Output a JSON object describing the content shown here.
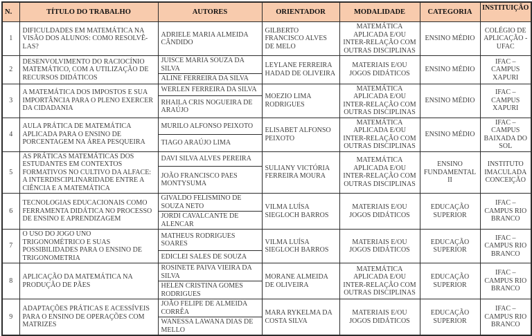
{
  "colors": {
    "header_bg": "#F8CBAD",
    "border": "#2b2b2b",
    "text": "#3d3d3d",
    "header_text": "#111111"
  },
  "table": {
    "columns": [
      "N.",
      "TÍTULO DO TRABALHO",
      "AUTORES",
      "ORIENTADOR",
      "MODALIDADE",
      "CATEGORIA",
      "INSTITUIÇÃO"
    ],
    "rows": [
      {
        "n": "1",
        "titulo": "DIFICULDADES EM MATEMÁTICA NA VISÃO DOS ALUNOS: COMO RESOLVÊ-LAS?",
        "autores": [
          "ADRIELE MARIA ALMEIDA CÂNDIDO"
        ],
        "orientador": "GILBERTO FRANCISCO ALVES DE MELO",
        "modalidade": "MATEMÁTICA APLICADA E/OU INTER-RELAÇÃO COM OUTRAS DISCIPLINAS",
        "categoria": "ENSINO MÉDIO",
        "instituicao": "COLÉGIO DE APLICAÇÃO - UFAC"
      },
      {
        "n": "2",
        "titulo": "DESENVOLVIMENTO DO RACIOCÍNIO MATEMÁTICO, COM A UTILIZAÇÃO DE RECURSOS DIDÁTICOS",
        "autores": [
          "JUISCE MARIA SOUZA DA SILVA",
          "ALINE FERREIRA DA SILVA"
        ],
        "orientador": "LEYLANE FERREIRA HADAD DE OLIVEIRA",
        "modalidade": "MATERIAIS E/OU JOGOS DIDÁTICOS",
        "categoria": "ENSINO MÉDIO",
        "instituicao": "IFAC – CAMPUS XAPURI"
      },
      {
        "n": "3",
        "titulo": "A MATEMÁTICA DOS IMPOSTOS E SUA IMPORTÂNCIA PARA O PLENO EXERCER DA CIDADANIA",
        "autores": [
          "WERLEN FERREIRA DA SILVA",
          "RHAILA CRIS NOGUEIRA DE ARAÚJO"
        ],
        "orientador": "MOEZIO LIMA RODRIGUES",
        "modalidade": "MATEMÁTICA APLICADA E/OU INTER-RELAÇÃO COM OUTRAS DISCIPLINAS",
        "categoria": "ENSINO MÉDIO",
        "instituicao": "IFAC – CAMPUS XAPURI"
      },
      {
        "n": "4",
        "titulo": "AULA PRÁTICA DE MATEMÁTICA APLICADA PARA O ENSINO DE PORCENTAGEM NA ÁREA PESQUEIRA",
        "autores": [
          "MURILO ALFONSO PEIXOTO",
          "TIAGO ARAÚJO LIMA"
        ],
        "orientador": "ELISABET ALFONSO PEIXOTO",
        "modalidade": "MATEMÁTICA APLICADA E/OU INTER-RELAÇÃO COM OUTRAS DISCIPLINAS",
        "categoria": "ENSINO MÉDIO",
        "instituicao": "IFAC – CAMPUS BAIXADA DO SOL"
      },
      {
        "n": "5",
        "titulo": "AS PRÁTICAS MATEMÁTICAS DOS ESTUDANTES EM CONTEXTOS FORMATIVOS NO CULTIVO DA ALFACE: A INTERDISCIPLINARIDADE ENTRE A CIÊNCIA E A MATEMÁTICA",
        "autores": [
          "DAVI SILVA ALVES PEREIRA",
          "JOÃO FRANCISCO PAES MONTYSUMA"
        ],
        "orientador": "SULIANY VICTÓRIA FERREIRA MOURA",
        "modalidade": "MATEMÁTICA APLICADA E/OU INTER-RELAÇÃO COM OUTRAS DISCIPLINAS",
        "categoria": "ENSINO FUNDAMENTAL II",
        "instituicao": "INSTITUTO IMACULADA CONCEIÇÃO"
      },
      {
        "n": "6",
        "titulo": "TECNOLOGIAS EDUCACIONAIS COMO FERRAMENTA DIDÁTICA NO PROCESSO DE ENSINO E APRENDIZAGEM",
        "autores": [
          "GIVALDO FELISMINO DE SOUZA NETO",
          "JORDI CAVALCANTE DE ALENCAR"
        ],
        "orientador": "VILMA LUÍSA SIEGLOCH BARROS",
        "modalidade": "MATERIAIS E/OU JOGOS DIDÁTICOS",
        "categoria": "EDUCAÇÃO SUPERIOR",
        "instituicao": "IFAC – CAMPUS RIO BRANCO"
      },
      {
        "n": "7",
        "titulo": "O USO DO JOGO UNO TRIGONOMÉTRICO E SUAS POSSIBILIDADES PARA O ENSINO DE TRIGONOMETRIA",
        "autores": [
          "MATHEUS RODRIGUES SOARES",
          "EDICLEI SALES DE SOUZA"
        ],
        "orientador": "VILMA LUÍSA SIEGLOCH BARROS",
        "modalidade": "MATERIAIS E/OU JOGOS DIDÁTICOS",
        "categoria": "EDUCAÇÃO SUPERIOR",
        "instituicao": "IFAC – CAMPUS RIO BRANCO"
      },
      {
        "n": "8",
        "titulo": "APLICAÇÃO DA MATEMÁTICA NA PRODUÇÃO DE PÃES",
        "autores": [
          "ROSINETE PAIVA VIEIRA DA SILVA",
          "HELEN CRISTINA GOMES RODRIGUES"
        ],
        "orientador": "MORANE ALMEIDA DE OLIVEIRA",
        "modalidade": "MATEMÁTICA APLICADA E/OU INTER-RELAÇÃO COM OUTRAS DISCIPLINAS",
        "categoria": "EDUCAÇÃO SUPERIOR",
        "instituicao": "IFAC – CAMPUS RIO BRANCO"
      },
      {
        "n": "9",
        "titulo": "ADAPTAÇÕES PRÁTICAS E ACESSÍVEIS PARA O ENSINO DE OPERAÇÕES COM MATRIZES",
        "autores": [
          "JOÃO FELIPE DE ALMEIDA CORRÊA",
          "WANESSA LAWANA DIAS DE MELLO"
        ],
        "orientador": "MARA RYKELMA DA COSTA SILVA",
        "modalidade": "MATERIAIS E/OU JOGOS DIDÁTICOS",
        "categoria": "EDUCAÇÃO SUPERIOR",
        "instituicao": "IFAC – CAMPUS RIO BRANCO"
      }
    ]
  }
}
